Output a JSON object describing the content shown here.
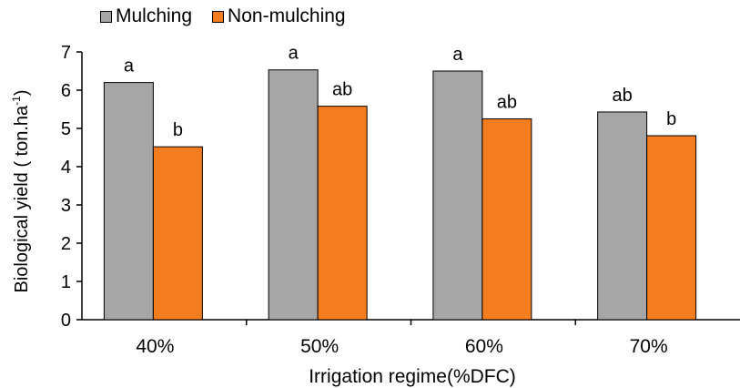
{
  "chart_data": {
    "type": "bar",
    "categories": [
      "40%",
      "50%",
      "60%",
      "70%"
    ],
    "series": [
      {
        "name": "Mulching",
        "values": [
          6.2,
          6.53,
          6.5,
          5.43
        ],
        "labels": [
          "a",
          "a",
          "a",
          "ab"
        ],
        "color": "#a6a6a6"
      },
      {
        "name": "Non-mulching",
        "values": [
          4.52,
          5.58,
          5.25,
          4.81
        ],
        "labels": [
          "b",
          "ab",
          "ab",
          "b"
        ],
        "color": "#f47d1f"
      }
    ],
    "xlabel": "Irrigation regime(%DFC)",
    "ylabel": "Biological yield ( ton.ha",
    "ylabel_sup": "-1",
    "ylabel_end": ")",
    "ylim": [
      0,
      7
    ],
    "yticks": [
      "0",
      "1",
      "2",
      "3",
      "4",
      "5",
      "6",
      "7"
    ],
    "grid": false,
    "legend_position": "top-left"
  }
}
